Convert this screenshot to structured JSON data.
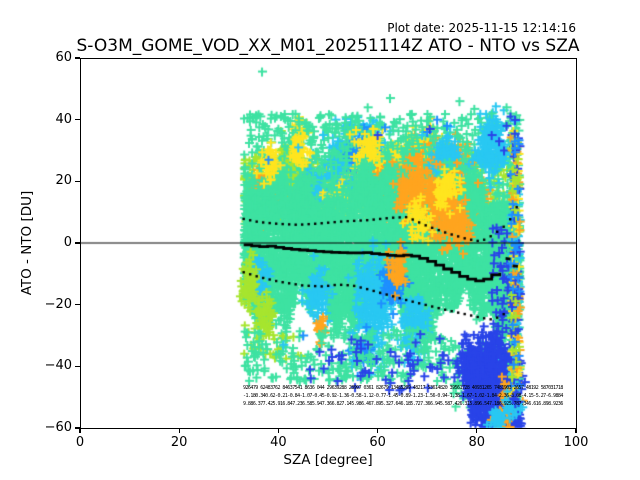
{
  "header": {
    "plot_date": "Plot date: 2025-11-15 12:14:16",
    "title": "S-O3M_GOME_VOD_XX_M01_20251114Z ATO - NTO vs SZA"
  },
  "chart_data": {
    "type": "scatter",
    "title": "S-O3M_GOME_VOD_XX_M01_20251114Z ATO - NTO vs SZA",
    "xlabel": "SZA [degree]",
    "ylabel": "ATO - NTO [DU]",
    "xlim": [
      0,
      100
    ],
    "ylim": [
      -60,
      60
    ],
    "xticks": [
      0,
      20,
      40,
      60,
      80,
      100
    ],
    "yticks": [
      60,
      40,
      20,
      0,
      -20,
      -40,
      -60
    ],
    "grid": false,
    "legend": "none",
    "marker": "plus",
    "data_x_extent_deg": [
      33,
      88.7
    ],
    "zero_line_y": 0,
    "colors": {
      "teal": "#3EE2A2",
      "greenyellow": "#A7E52F",
      "yellow": "#FFE51F",
      "orange": "#FFA51F",
      "cyan": "#29C8F2",
      "skyblue": "#1E90FF",
      "royalblue": "#2944E8",
      "line": "#000000"
    },
    "series": {
      "mean_line": [
        [
          33,
          -0.6
        ],
        [
          36,
          -1.2
        ],
        [
          38,
          -1.0
        ],
        [
          40,
          -1.6
        ],
        [
          43,
          -2.1
        ],
        [
          46,
          -2.5
        ],
        [
          49,
          -2.9
        ],
        [
          52,
          -3.1
        ],
        [
          55,
          -3.3
        ],
        [
          56.5,
          -3.0
        ],
        [
          58,
          -3.3
        ],
        [
          60,
          -3.6
        ],
        [
          62,
          -4.0
        ],
        [
          64,
          -4.2
        ],
        [
          65.5,
          -3.9
        ],
        [
          67,
          -4.3
        ],
        [
          69,
          -5.2
        ],
        [
          71,
          -6.6
        ],
        [
          73,
          -8.2
        ],
        [
          75,
          -9.6
        ],
        [
          77,
          -11.2
        ],
        [
          79,
          -12.1
        ],
        [
          80.5,
          -12.4
        ],
        [
          82,
          -11.2
        ],
        [
          83.5,
          -9.9
        ],
        [
          85,
          -9.6
        ]
      ],
      "mean_extra_dashes": [
        [
          [
            85.8,
            -5.0
          ],
          [
            86.8,
            -5.2
          ]
        ],
        [
          [
            87.2,
            -7.4
          ],
          [
            88.3,
            -7.6
          ]
        ]
      ],
      "upper_std_dotted": [
        [
          33,
          7.8
        ],
        [
          36,
          6.8
        ],
        [
          40,
          6.2
        ],
        [
          44,
          5.9
        ],
        [
          48,
          6.3
        ],
        [
          53,
          7.0
        ],
        [
          58,
          7.4
        ],
        [
          63,
          8.2
        ],
        [
          66,
          8.4
        ],
        [
          70,
          5.5
        ],
        [
          74,
          3.2
        ],
        [
          78,
          1.3
        ],
        [
          80.5,
          0.6
        ],
        [
          82,
          1.3
        ],
        [
          84,
          3.5
        ],
        [
          86,
          6.0
        ],
        [
          87.5,
          9.5
        ],
        [
          88.5,
          13.5
        ]
      ],
      "lower_std_dotted": [
        [
          33,
          -9.5
        ],
        [
          36,
          -11
        ],
        [
          40,
          -12.5
        ],
        [
          45,
          -13.8
        ],
        [
          49,
          -14.1
        ],
        [
          52,
          -13.5
        ],
        [
          55,
          -13.8
        ],
        [
          58,
          -15
        ],
        [
          62,
          -16.8
        ],
        [
          66,
          -18.6
        ],
        [
          70,
          -20.2
        ],
        [
          74,
          -21.8
        ],
        [
          78,
          -23.2
        ],
        [
          81,
          -24.3
        ],
        [
          83,
          -24.8
        ],
        [
          84.5,
          -24
        ],
        [
          85.5,
          -23
        ]
      ]
    },
    "stats_rows": {
      "note": "per-bin statistics printed in tiny font along y=-47..-53",
      "rows": [
        "926479 62483762 84637541 8636 044 29639288 28997 0361 82679 13485209 48217 53614820 39561728 40931265 7481903 2657 48192 587031718",
        "-1.180.340.62-0.21-0.84-1.07-0.45-0.92-1.36-0.58-1.12-0.77-1.45-0.89-1.23-1.56-0.94-1.38-1.67-1.02-1.84-2.36-3.08-4.15-5.27-6.9884",
        "9.886.377.425.916.847.236.585.947.366.827.145.986.467.895.327.646.185.727.366.945.587.426.315.896.547.186.925.787.346.616.898.9236"
      ]
    },
    "clusters": [
      {
        "k": "band",
        "c": "greenyellow",
        "p": [
          33,
          52,
          4,
          28,
          450
        ]
      },
      {
        "k": "band",
        "c": "greenyellow",
        "p": [
          52,
          88,
          8,
          30,
          350
        ]
      },
      {
        "k": "blob",
        "c": "cyan",
        "p": [
          47,
          17,
          2,
          5,
          140
        ]
      },
      {
        "k": "blob",
        "c": "cyan",
        "p": [
          56,
          27,
          2.5,
          6,
          420
        ]
      },
      {
        "k": "blob",
        "c": "cyan",
        "p": [
          60,
          21,
          2,
          5,
          240
        ]
      },
      {
        "k": "blob",
        "c": "cyan",
        "p": [
          53,
          22,
          1.5,
          4,
          140
        ]
      },
      {
        "k": "blob",
        "c": "skyblue",
        "p": [
          57,
          30,
          1.5,
          4,
          110
        ]
      },
      {
        "k": "blob",
        "c": "skyblue",
        "p": [
          66,
          13,
          1.5,
          4,
          90
        ]
      },
      {
        "k": "blob",
        "c": "yellow",
        "p": [
          58,
          21,
          1.5,
          5,
          130
        ]
      },
      {
        "k": "blob",
        "c": "yellow",
        "p": [
          63,
          25,
          1.5,
          4,
          110
        ]
      },
      {
        "k": "blob",
        "c": "yellow",
        "p": [
          52,
          12,
          1.2,
          3,
          70
        ]
      },
      {
        "k": "blob",
        "c": "yellow",
        "p": [
          44,
          37,
          0.8,
          2.5,
          25
        ]
      },
      {
        "k": "blob",
        "c": "yellow",
        "p": [
          70,
          29,
          1.5,
          4,
          90
        ]
      },
      {
        "k": "blob",
        "c": "yellow",
        "p": [
          67,
          31,
          1,
          2.5,
          35
        ]
      },
      {
        "k": "blob",
        "c": "orange",
        "p": [
          62,
          15,
          1.8,
          5,
          220
        ]
      },
      {
        "k": "blob",
        "c": "orange",
        "p": [
          66.5,
          20,
          1.8,
          5,
          200
        ]
      },
      {
        "k": "blob",
        "c": "orange",
        "p": [
          72,
          18,
          2,
          6,
          260
        ]
      },
      {
        "k": "blob",
        "c": "orange",
        "p": [
          75.5,
          24,
          1.8,
          5,
          160
        ]
      },
      {
        "k": "blob",
        "c": "orange",
        "p": [
          78,
          13,
          1.8,
          5,
          150
        ]
      },
      {
        "k": "blob",
        "c": "orange",
        "p": [
          70,
          9,
          1.5,
          4,
          100
        ]
      },
      {
        "k": "blob",
        "c": "orange",
        "p": [
          40,
          15,
          1,
          3,
          50
        ]
      },
      {
        "k": "blob",
        "c": "orange",
        "p": [
          36,
          19,
          0.8,
          2.5,
          35
        ]
      },
      {
        "k": "blob",
        "c": "greenyellow",
        "p": [
          42,
          24,
          1.5,
          4,
          110
        ]
      },
      {
        "k": "band",
        "c": "teal",
        "p": [
          33,
          88,
          18,
          42,
          550
        ]
      },
      {
        "k": "blob",
        "c": "cyan",
        "p": [
          74,
          26,
          1.5,
          4,
          110
        ]
      },
      {
        "k": "blob",
        "c": "cyan",
        "p": [
          83,
          31,
          1.5,
          5,
          160
        ]
      },
      {
        "k": "core",
        "c": "teal",
        "p": [
          33,
          88.6,
          6500
        ]
      },
      {
        "k": "blob",
        "c": "cyan",
        "p": [
          59,
          -20,
          1.8,
          8,
          260
        ]
      },
      {
        "k": "blob",
        "c": "cyan",
        "p": [
          48,
          -16,
          1.2,
          4,
          80
        ]
      },
      {
        "k": "blob",
        "c": "cyan",
        "p": [
          67,
          -27,
          1.5,
          5,
          130
        ]
      },
      {
        "k": "blob",
        "c": "cyan",
        "p": [
          36,
          -12,
          1,
          3,
          60
        ]
      },
      {
        "k": "blob",
        "c": "skyblue",
        "p": [
          63,
          -13,
          1.2,
          4,
          70
        ]
      },
      {
        "k": "blob",
        "c": "skyblue",
        "p": [
          57,
          -35,
          1,
          3,
          45
        ]
      },
      {
        "k": "blob",
        "c": "orange",
        "p": [
          64,
          -8,
          1,
          3,
          55
        ]
      },
      {
        "k": "blob",
        "c": "orange",
        "p": [
          73,
          13,
          1.8,
          5,
          150
        ]
      },
      {
        "k": "blob",
        "c": "orange",
        "p": [
          67,
          17,
          1.5,
          4,
          110
        ]
      },
      {
        "k": "blob",
        "c": "orange",
        "p": [
          76,
          7,
          1.5,
          4,
          90
        ]
      },
      {
        "k": "blob",
        "c": "orange",
        "p": [
          48.5,
          -28,
          0.5,
          2,
          22
        ]
      },
      {
        "k": "blob",
        "c": "yellow",
        "p": [
          74,
          17,
          1.2,
          3.5,
          70
        ]
      },
      {
        "k": "blob",
        "c": "yellow",
        "p": [
          68,
          7,
          1,
          3,
          50
        ]
      },
      {
        "k": "blob",
        "c": "yellow",
        "p": [
          58,
          31,
          1.2,
          3,
          45
        ]
      },
      {
        "k": "blob",
        "c": "yellow",
        "p": [
          44,
          30,
          1,
          2.5,
          40
        ]
      },
      {
        "k": "blob",
        "c": "yellow",
        "p": [
          38,
          26,
          1,
          2.5,
          40
        ]
      },
      {
        "k": "blob",
        "c": "greenyellow",
        "p": [
          37,
          -24,
          1.2,
          4,
          60
        ]
      },
      {
        "k": "blob",
        "c": "greenyellow",
        "p": [
          34,
          -14,
          0.8,
          5,
          60
        ]
      },
      {
        "k": "band",
        "c": "greenyellow",
        "p": [
          33,
          46,
          -38,
          -30,
          22
        ]
      },
      {
        "k": "band",
        "c": "teal",
        "p": [
          33,
          75,
          -45,
          -28,
          260
        ]
      },
      {
        "k": "band",
        "c": "teal",
        "p": [
          75,
          88,
          -55,
          -32,
          150
        ]
      },
      {
        "k": "pts",
        "c": "teal",
        "p": [
          [
            36.7,
            55.6
          ],
          [
            62.5,
            47
          ],
          [
            76.5,
            46
          ],
          [
            79.5,
            43.5
          ],
          [
            58,
            44
          ],
          [
            60.5,
            41
          ],
          [
            35,
            40.5
          ],
          [
            66,
            38
          ],
          [
            83,
            42
          ],
          [
            86,
            44
          ],
          [
            50,
            36
          ],
          [
            47,
            34
          ]
        ]
      },
      {
        "k": "pts",
        "c": "cyan",
        "p": [
          [
            41,
            -33
          ],
          [
            55,
            -38
          ],
          [
            49,
            35
          ],
          [
            52,
            33
          ],
          [
            69,
            35
          ],
          [
            80,
            -38
          ],
          [
            87,
            33
          ],
          [
            85,
            28
          ],
          [
            44,
            31
          ]
        ]
      },
      {
        "k": "blob",
        "c": "cyan",
        "p": [
          85.5,
          -44,
          1,
          3,
          40
        ]
      },
      {
        "k": "pts",
        "c": "skyblue",
        "p": [
          [
            38,
            27
          ],
          [
            61.5,
            37.5
          ],
          [
            70,
            36
          ],
          [
            45,
            -30
          ],
          [
            72,
            40
          ],
          [
            74,
            38
          ]
        ]
      },
      {
        "k": "band",
        "c": "royalblue",
        "p": [
          45,
          75,
          -48,
          -28,
          55
        ]
      },
      {
        "k": "blob",
        "c": "royalblue",
        "p": [
          79,
          -40,
          1.5,
          4,
          140
        ]
      },
      {
        "k": "blob",
        "c": "royalblue",
        "p": [
          82,
          -46,
          2,
          5,
          260
        ]
      },
      {
        "k": "blob",
        "c": "royalblue",
        "p": [
          85,
          -51,
          1.5,
          4,
          220
        ]
      },
      {
        "k": "blob",
        "c": "royalblue",
        "p": [
          86.5,
          -43,
          1,
          4,
          120
        ]
      },
      {
        "k": "blob",
        "c": "royalblue",
        "p": [
          83.5,
          -36,
          1.5,
          3,
          90
        ]
      },
      {
        "k": "blob",
        "c": "royalblue",
        "p": [
          80.5,
          -53,
          1.2,
          3,
          70
        ]
      },
      {
        "k": "blob",
        "c": "royalblue",
        "p": [
          84.5,
          -58,
          1.5,
          2,
          70
        ]
      },
      {
        "k": "blob",
        "c": "royalblue",
        "p": [
          87.5,
          -57,
          1,
          2,
          50
        ]
      },
      {
        "k": "band",
        "c": "royalblue",
        "p": [
          83,
          88.5,
          -30,
          5,
          55
        ]
      },
      {
        "k": "pts",
        "c": "royalblue",
        "p": [
          [
            84.5,
            33
          ],
          [
            86,
            38
          ],
          [
            87,
            35
          ],
          [
            85.5,
            30
          ],
          [
            83,
            35
          ],
          [
            86.8,
            41
          ],
          [
            60,
            35
          ],
          [
            70.5,
            37
          ],
          [
            57,
            -42
          ]
        ]
      },
      {
        "k": "blob",
        "c": "orange",
        "p": [
          85,
          -57,
          0.8,
          1.5,
          25
        ]
      },
      {
        "k": "blob",
        "c": "orange",
        "p": [
          86.5,
          -49,
          0.8,
          2,
          30
        ]
      },
      {
        "k": "blob",
        "c": "cyan",
        "p": [
          84,
          -57,
          1,
          1.5,
          30
        ]
      },
      {
        "k": "blob",
        "c": "cyan",
        "p": [
          87.5,
          -53,
          0.8,
          2,
          25
        ]
      },
      {
        "k": "band",
        "c": "teal",
        "p": [
          86.8,
          88.7,
          -50,
          40,
          55
        ]
      },
      {
        "k": "band",
        "c": "cyan",
        "p": [
          86.8,
          88.7,
          -52,
          40,
          45
        ]
      },
      {
        "k": "band",
        "c": "yellow",
        "p": [
          86.8,
          88.7,
          -50,
          38,
          40
        ]
      },
      {
        "k": "band",
        "c": "orange",
        "p": [
          86.8,
          88.7,
          -48,
          35,
          40
        ]
      },
      {
        "k": "band",
        "c": "royalblue",
        "p": [
          86.8,
          88.7,
          -52,
          40,
          45
        ]
      },
      {
        "k": "band",
        "c": "greenyellow",
        "p": [
          86.8,
          88.7,
          -45,
          35,
          28
        ]
      },
      {
        "k": "band",
        "c": "skyblue",
        "p": [
          86.8,
          88.7,
          -50,
          38,
          28
        ]
      }
    ]
  }
}
